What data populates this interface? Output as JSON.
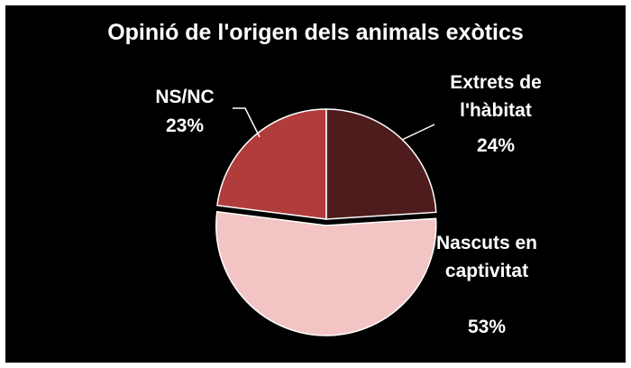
{
  "chart_data": {
    "type": "pie",
    "title": "Opinió de l'origen dels animals exòtics",
    "categories": [
      "Extrets de l'hàbitat",
      "Nascuts en captivitat",
      "NS/NC"
    ],
    "values": [
      24,
      53,
      23
    ],
    "value_labels": [
      "24%",
      "53%",
      "23%"
    ],
    "colors": [
      "#4e1c1c",
      "#f3c4c4",
      "#b03c3c"
    ]
  }
}
